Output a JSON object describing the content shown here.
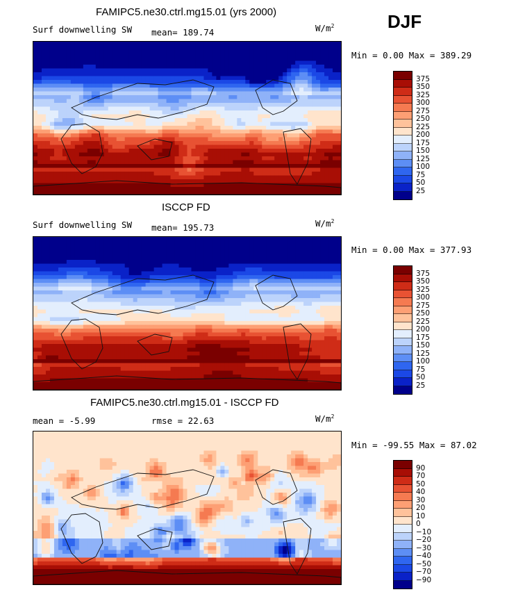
{
  "season": "DJF",
  "colors": {
    "abs_scale": [
      "#00008b",
      "#0a22c8",
      "#1b48e6",
      "#2f66f0",
      "#5d8ef5",
      "#8fb2f8",
      "#bcd3fb",
      "#e3eefd",
      "#ffe4cc",
      "#ffc29b",
      "#fd9f74",
      "#f57a51",
      "#e85233",
      "#cf2c17",
      "#a80e05",
      "#7a0000"
    ],
    "diff_scale": [
      "#00008b",
      "#0a22c8",
      "#1b48e6",
      "#2f66f0",
      "#5d8ef5",
      "#8fb2f8",
      "#bcd3fb",
      "#e3eefd",
      "#ffe4cc",
      "#ffc29b",
      "#fd9f74",
      "#f57a51",
      "#e85233",
      "#cf2c17",
      "#a80e05",
      "#7a0000"
    ]
  },
  "chart_data": [
    {
      "type": "heatmap",
      "title": "FAMIPC5.ne30.ctrl.mg15.01 (yrs 2000)",
      "variable": "Surf downwelling SW",
      "mean_label": "mean= 189.74",
      "units": "W/m",
      "units_exp": "2",
      "min_max": "Min =    0.00 Max = 389.29",
      "min": 0.0,
      "max": 389.29,
      "mean": 189.74,
      "colorbar_levels": [
        "375",
        "350",
        "325",
        "300",
        "275",
        "250",
        "225",
        "200",
        "175",
        "150",
        "125",
        "100",
        "75",
        "50",
        "25"
      ]
    },
    {
      "type": "heatmap",
      "title": "ISCCP FD",
      "variable": "Surf downwelling SW",
      "mean_label": "mean= 195.73",
      "units": "W/m",
      "units_exp": "2",
      "min_max": "Min =    0.00 Max = 377.93",
      "min": 0.0,
      "max": 377.93,
      "mean": 195.73,
      "colorbar_levels": [
        "375",
        "350",
        "325",
        "300",
        "275",
        "250",
        "225",
        "200",
        "175",
        "150",
        "125",
        "100",
        "75",
        "50",
        "25"
      ]
    },
    {
      "type": "heatmap",
      "title": "FAMIPC5.ne30.ctrl.mg15.01 - ISCCP FD",
      "mean_label": "mean =   -5.99",
      "rmse_label": "rmse =   22.63",
      "units": "W/m",
      "units_exp": "2",
      "min_max": "Min = -99.55 Max =  87.02",
      "min": -99.55,
      "max": 87.02,
      "mean": -5.99,
      "rmse": 22.63,
      "colorbar_levels": [
        "90",
        "70",
        "50",
        "40",
        "30",
        "20",
        "10",
        "0",
        "−10",
        "−20",
        "−30",
        "−40",
        "−50",
        "−70",
        "−90"
      ]
    }
  ]
}
